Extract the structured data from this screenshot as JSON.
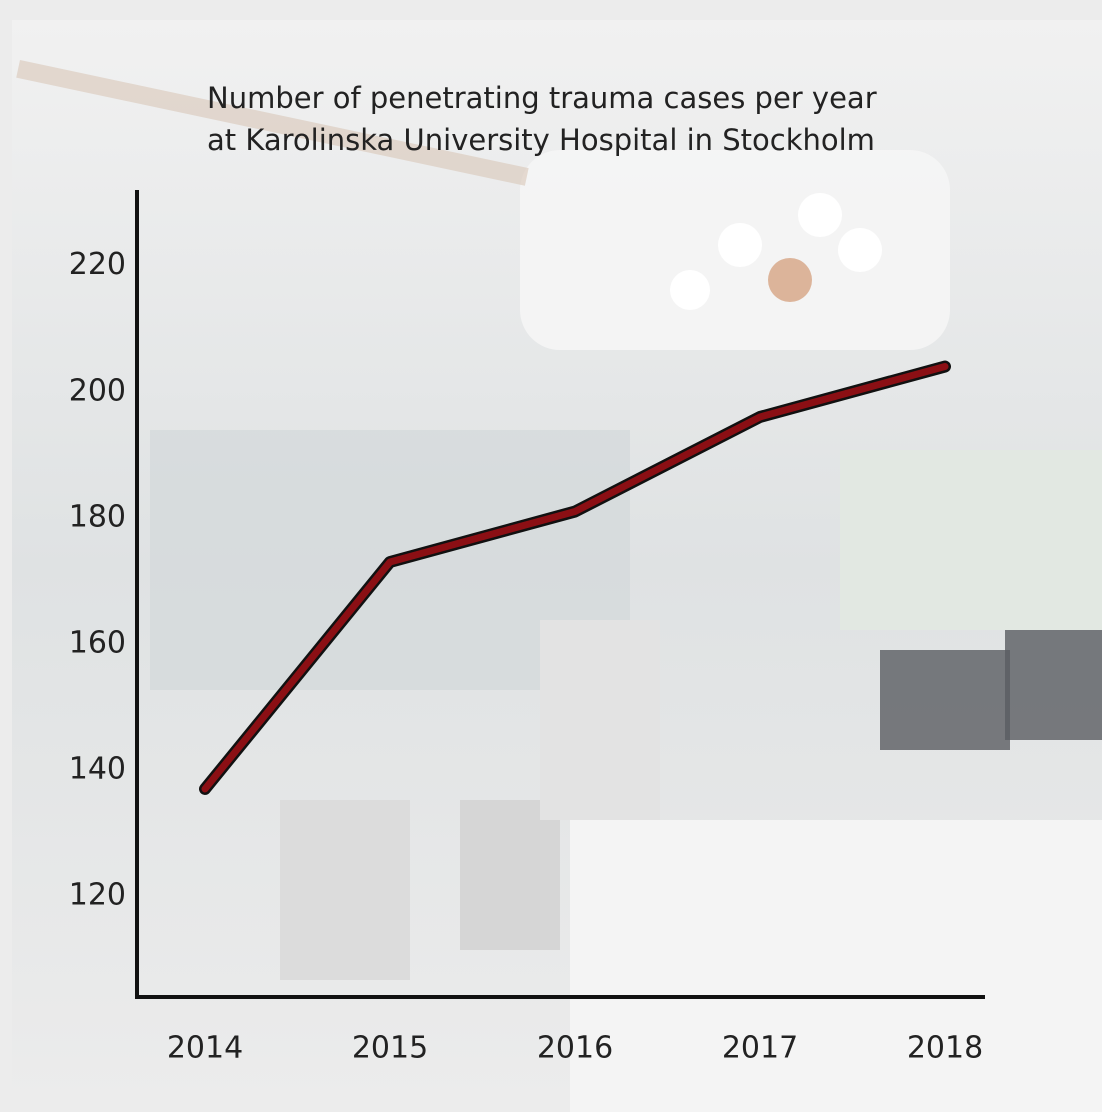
{
  "chart_data": {
    "type": "line",
    "title": [
      "Number of penetrating trauma cases per year",
      "at Karolinska University Hospital in Stockholm"
    ],
    "categories": [
      "2014",
      "2015",
      "2016",
      "2017",
      "2018"
    ],
    "values": [
      137,
      173,
      181,
      196,
      204
    ],
    "color": "#8b0f14",
    "ylim": [
      104,
      232
    ],
    "yticks": [
      120,
      140,
      160,
      180,
      200,
      220
    ],
    "grid": false
  }
}
